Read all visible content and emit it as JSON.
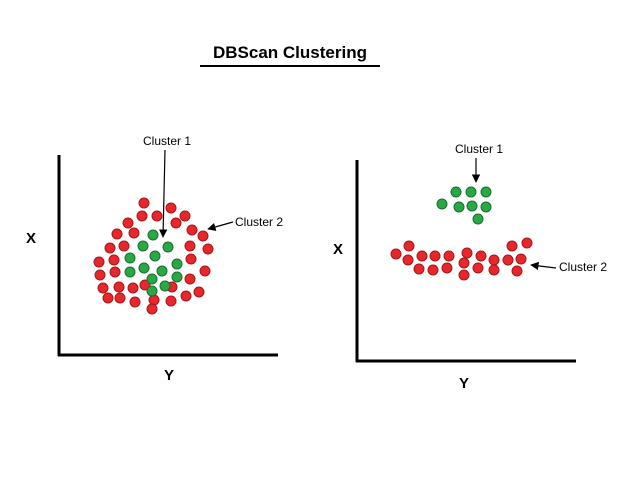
{
  "title": "DBScan Clustering",
  "colors": {
    "background": "#ffffff",
    "axis": "#000000",
    "red_fill": "#e8262b",
    "red_stroke": "#9e1a1d",
    "green_fill": "#2aa845",
    "green_stroke": "#1a6e2c"
  },
  "left_plot": {
    "x_axis_label": "Y",
    "y_axis_label": "X",
    "cluster1_label": "Cluster 1",
    "cluster2_label": "Cluster 2"
  },
  "right_plot": {
    "x_axis_label": "Y",
    "y_axis_label": "X",
    "cluster1_label": "Cluster 1",
    "cluster2_label": "Cluster 2"
  }
}
